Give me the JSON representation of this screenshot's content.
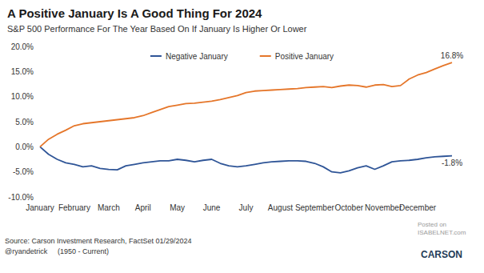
{
  "chart_data": {
    "type": "line",
    "title": "A Positive January Is A Good Thing For 2024",
    "subtitle": "S&P 500 Performance For The Year Based On If January Is Higher Or Lower",
    "categories": [
      "January",
      null,
      null,
      null,
      "February",
      null,
      null,
      null,
      "March",
      null,
      null,
      null,
      "April",
      null,
      null,
      null,
      "May",
      null,
      null,
      null,
      "June",
      null,
      null,
      null,
      "July",
      null,
      null,
      null,
      "August",
      null,
      null,
      null,
      "September",
      null,
      null,
      null,
      "October",
      null,
      null,
      null,
      "November",
      null,
      null,
      null,
      "December",
      null,
      null,
      null,
      null
    ],
    "series": [
      {
        "name": "Negative January",
        "color": "#2f5597",
        "values": [
          0,
          -1.5,
          -2.5,
          -3.2,
          -3.5,
          -4.0,
          -3.8,
          -4.3,
          -4.5,
          -4.6,
          -3.8,
          -3.5,
          -3.2,
          -3.0,
          -2.8,
          -2.8,
          -2.5,
          -2.7,
          -3.0,
          -2.7,
          -2.5,
          -3.3,
          -3.8,
          -4.0,
          -3.8,
          -3.5,
          -3.2,
          -3.0,
          -2.9,
          -2.8,
          -2.8,
          -2.9,
          -3.3,
          -4.0,
          -5.0,
          -5.2,
          -4.8,
          -4.2,
          -3.8,
          -4.5,
          -3.8,
          -3.0,
          -2.8,
          -2.7,
          -2.5,
          -2.2,
          -2.0,
          -1.9,
          -1.8
        ]
      },
      {
        "name": "Positive January",
        "color": "#e5762a",
        "values": [
          0,
          1.5,
          2.5,
          3.3,
          4.2,
          4.6,
          4.8,
          5.0,
          5.2,
          5.4,
          5.6,
          5.8,
          6.2,
          6.8,
          7.4,
          8.0,
          8.3,
          8.6,
          8.7,
          8.9,
          9.1,
          9.4,
          9.8,
          10.2,
          10.8,
          11.1,
          11.2,
          11.3,
          11.4,
          11.5,
          11.6,
          11.8,
          11.9,
          12.0,
          11.8,
          12.1,
          12.3,
          12.2,
          11.9,
          12.3,
          12.4,
          12.0,
          12.2,
          13.5,
          14.3,
          14.8,
          15.5,
          16.2,
          16.8
        ]
      }
    ],
    "annotations": [
      {
        "series": "Positive January",
        "value": 16.8,
        "label": "16.8%"
      },
      {
        "series": "Negative January",
        "value": -1.8,
        "label": "-1.8%"
      }
    ],
    "ylim": [
      -10,
      20
    ],
    "yticks": [
      {
        "value": -10,
        "label": "-10.0%"
      },
      {
        "value": -5,
        "label": "-5.0%"
      },
      {
        "value": 0,
        "label": "0.0%"
      },
      {
        "value": 5,
        "label": "5.0%"
      },
      {
        "value": 10,
        "label": "10.0%"
      },
      {
        "value": 15,
        "label": "15.0%"
      },
      {
        "value": 20,
        "label": "20.0%"
      }
    ],
    "grid": false,
    "legend": "top",
    "notes": [
      "Source: Carson Investment Research, FactSet 01/29/2024",
      "@ryandetrick",
      "(1950 - Current)"
    ],
    "watermark": [
      "Posted on",
      "ISABELNET.com"
    ],
    "logo": "CARSON"
  }
}
